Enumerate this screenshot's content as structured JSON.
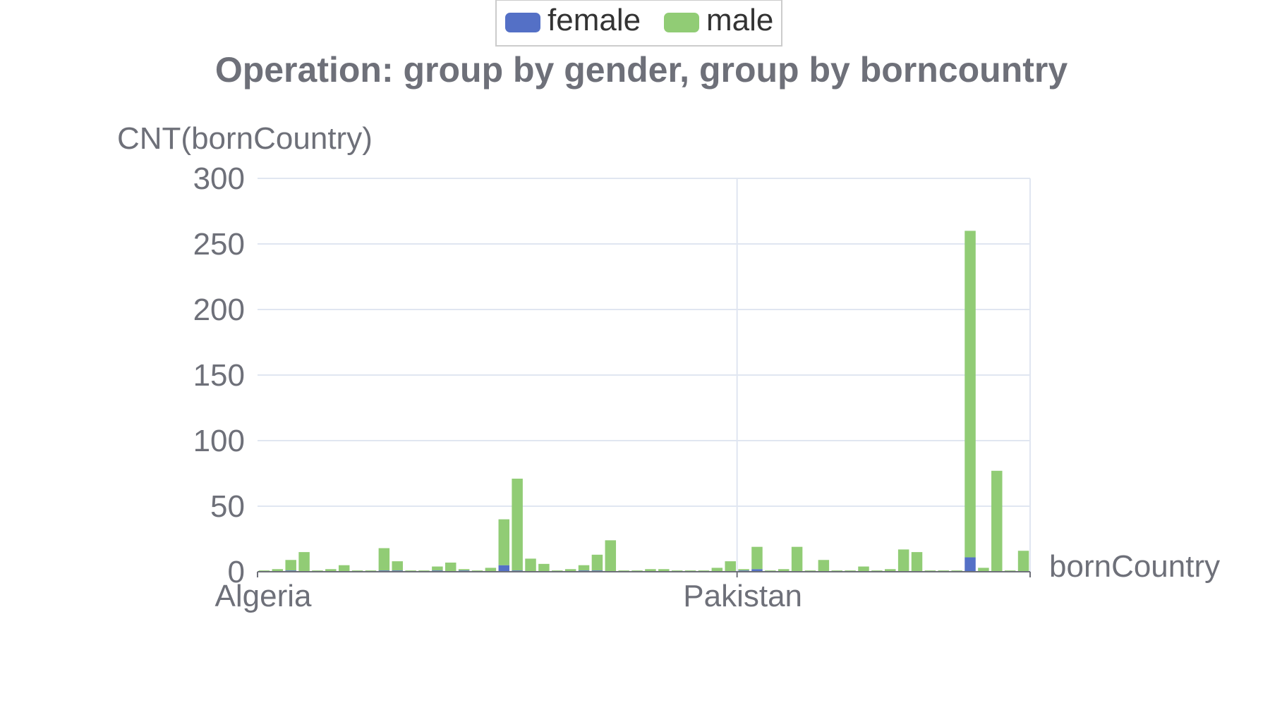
{
  "chart_data": {
    "type": "bar",
    "stacked": true,
    "title": "Operation: group by gender, group by borncountry",
    "xlabel": "bornCountry",
    "ylabel": "CNT(bornCountry)",
    "ylim": [
      0,
      300
    ],
    "yticks": [
      0,
      50,
      100,
      150,
      200,
      250,
      300
    ],
    "grid": true,
    "legend_position": "top-center",
    "x_tick_labels": [
      {
        "label": "Algeria",
        "index": 0
      },
      {
        "label": "Pakistan",
        "index": 36
      }
    ],
    "category_count": 58,
    "series": [
      {
        "name": "female",
        "color": "#5470c6",
        "values": [
          0,
          0,
          1,
          0,
          0,
          0,
          0,
          0,
          0,
          1,
          1,
          0,
          0,
          1,
          0,
          1,
          0,
          0,
          5,
          1,
          0,
          0,
          0,
          0,
          1,
          1,
          0,
          0,
          0,
          0,
          0,
          0,
          0,
          0,
          0,
          0,
          1,
          2,
          0,
          0,
          0,
          0,
          0,
          0,
          0,
          0,
          0,
          0,
          0,
          0,
          0,
          0,
          0,
          11,
          0,
          0,
          0,
          0
        ]
      },
      {
        "name": "male",
        "color": "#91cc75",
        "values": [
          1,
          2,
          8,
          15,
          1,
          2,
          5,
          1,
          1,
          17,
          7,
          1,
          1,
          3,
          7,
          1,
          1,
          3,
          35,
          70,
          10,
          6,
          1,
          2,
          4,
          12,
          24,
          1,
          1,
          2,
          2,
          1,
          1,
          1,
          3,
          8,
          1,
          17,
          1,
          2,
          19,
          1,
          9,
          1,
          1,
          4,
          1,
          2,
          17,
          15,
          1,
          1,
          1,
          249,
          3,
          77,
          1,
          16
        ]
      }
    ]
  }
}
